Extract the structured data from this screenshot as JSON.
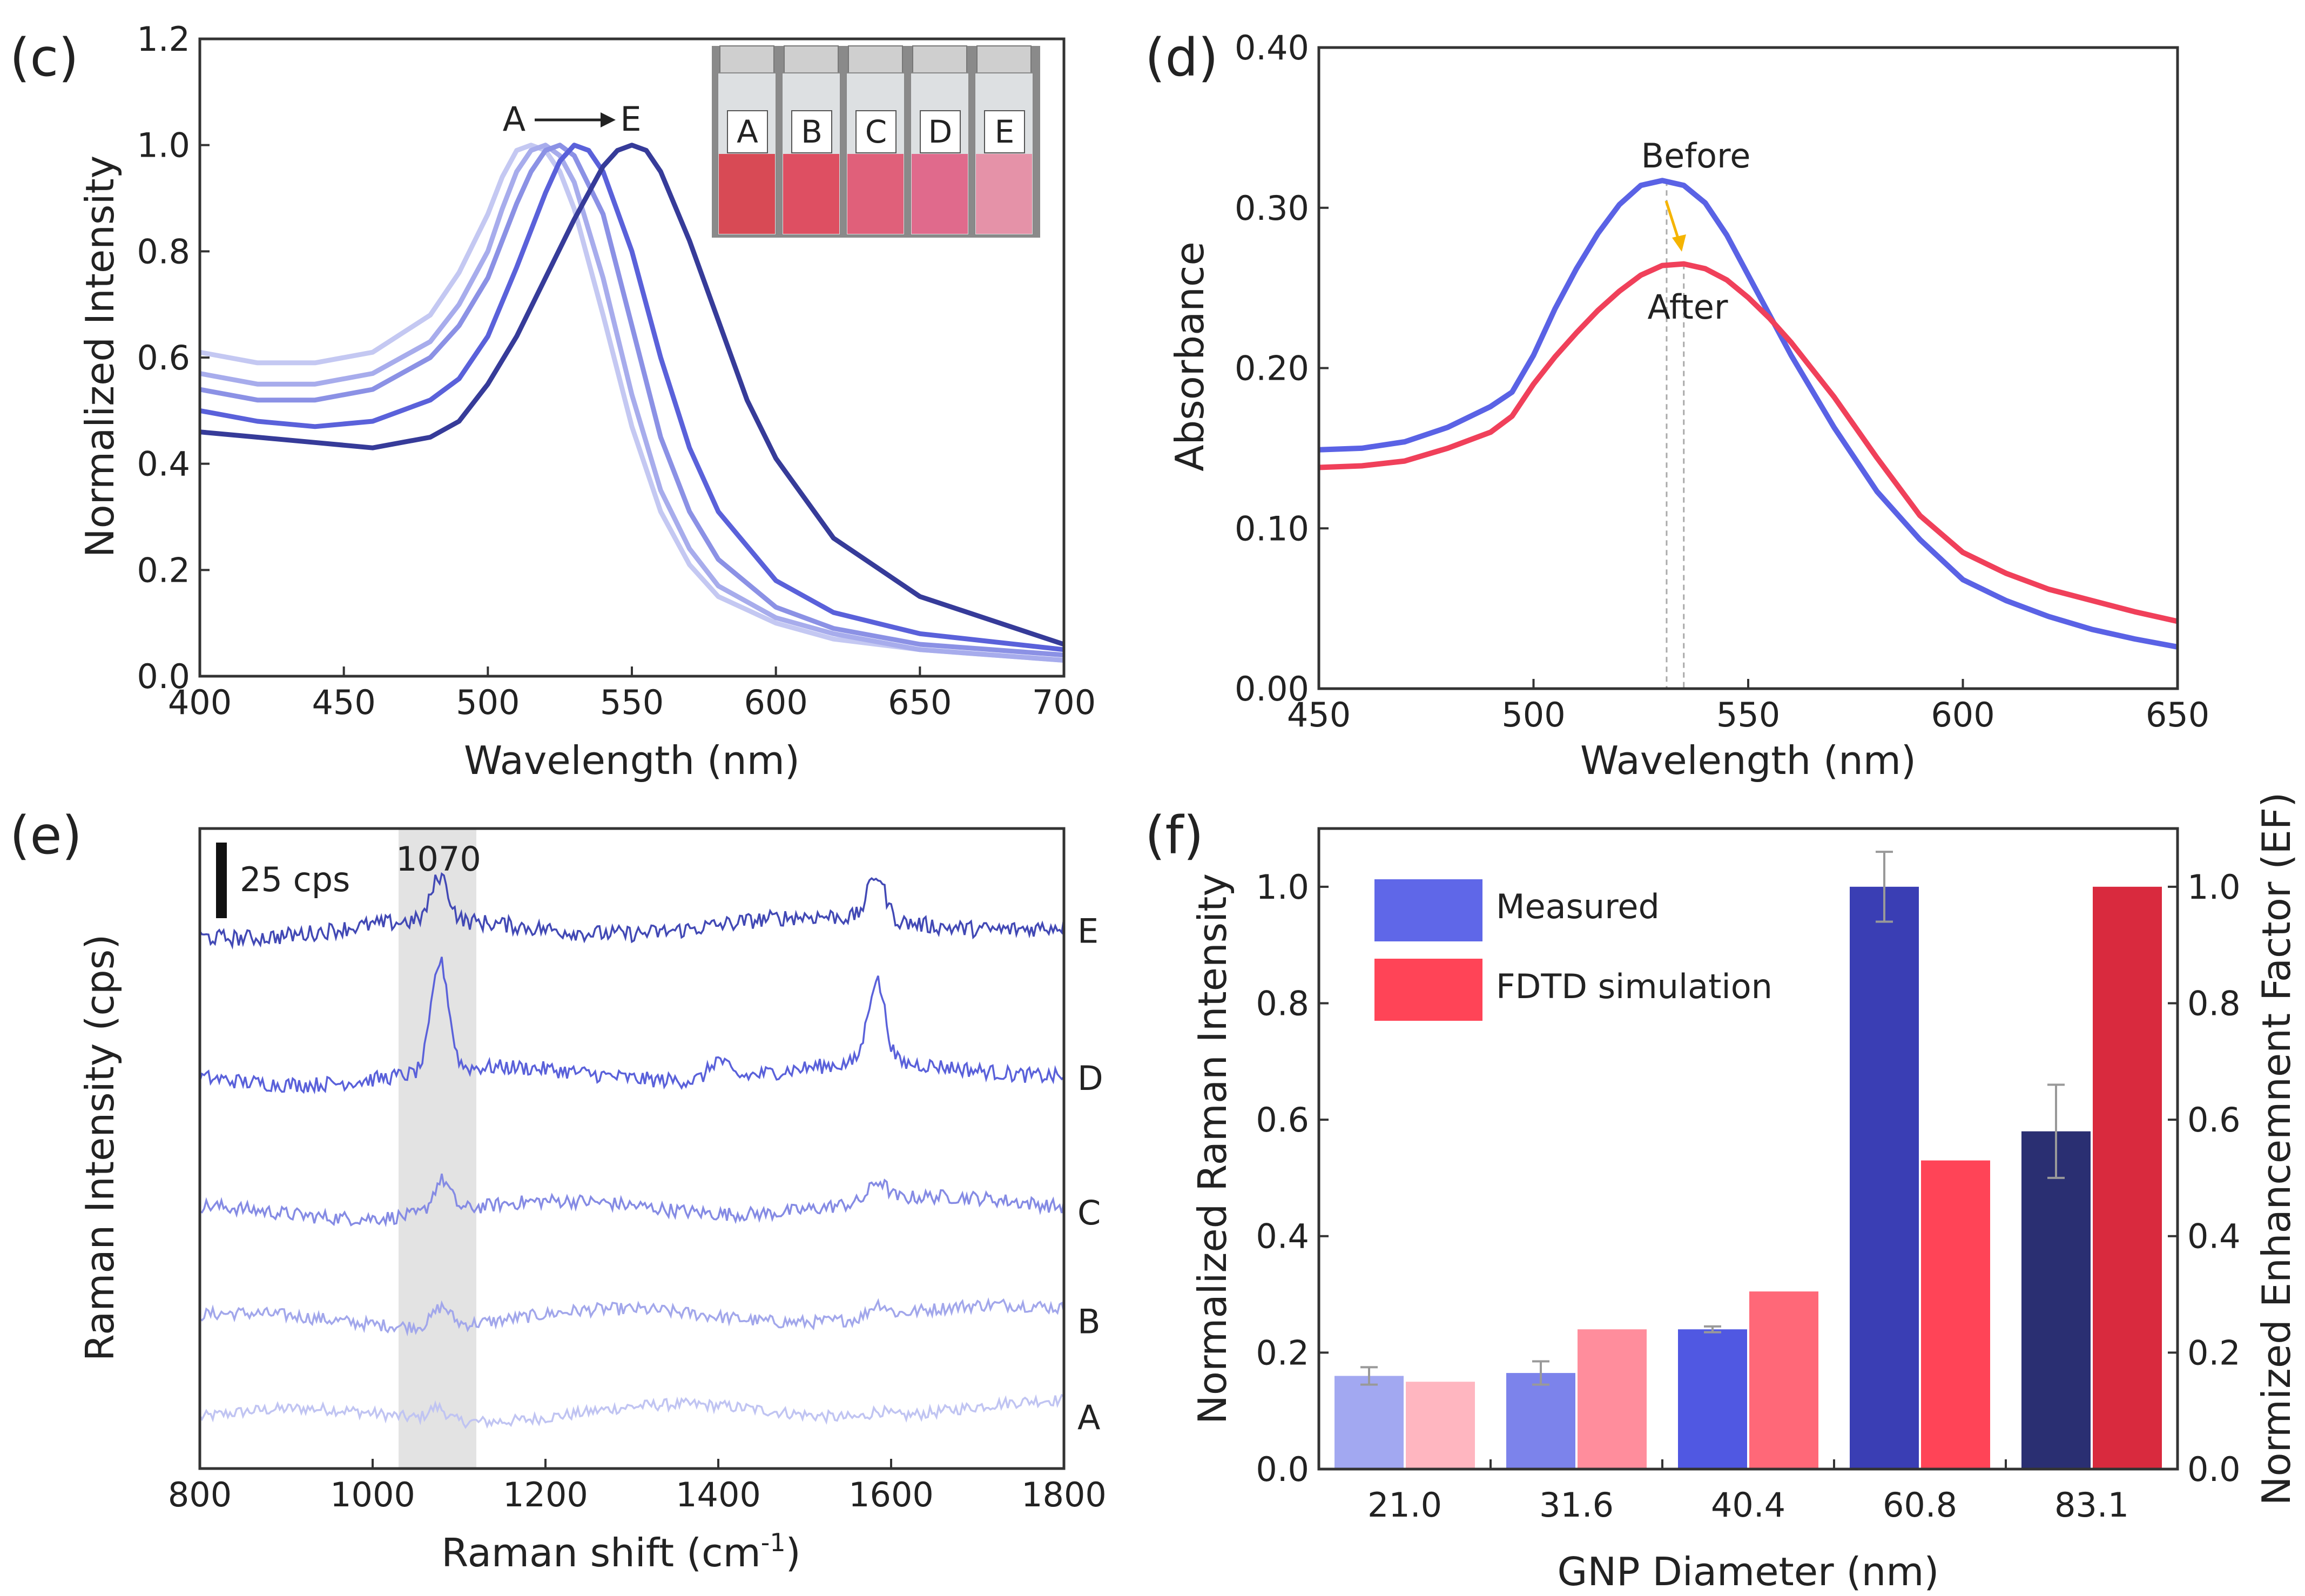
{
  "colors": {
    "series_c": [
      "#c4c8f2",
      "#a7acec",
      "#8b91e5",
      "#5a61da",
      "#363b99"
    ],
    "series_e": [
      "#c0c4f2",
      "#a2a7eb",
      "#858be4",
      "#5a61da",
      "#4249b5"
    ],
    "before": "#5a62e5",
    "after": "#f0405a",
    "arrow": "#f5b400",
    "measured_bars": [
      "#a2a8f1",
      "#7c83eb",
      "#5058e2",
      "#3a3eb4",
      "#2a2f72"
    ],
    "fdtd_bars": [
      "#ffb6c0",
      "#ff8d9c",
      "#ff6878",
      "#ff4457",
      "#d92a3e"
    ],
    "error_bar": "#999999",
    "shade": "#e0e0e0"
  },
  "chart_data": [
    {
      "panel": "(c)",
      "type": "line",
      "xlabel": "Wavelength (nm)",
      "ylabel": "Normalized Intensity",
      "xlim": [
        400,
        700
      ],
      "ylim": [
        0.0,
        1.2
      ],
      "xticks": [
        "400",
        "450",
        "500",
        "550",
        "600",
        "650",
        "700"
      ],
      "yticks": [
        "0.0",
        "0.2",
        "0.4",
        "0.6",
        "0.8",
        "1.0",
        "1.2"
      ],
      "annotation": {
        "start": "A",
        "end": "E"
      },
      "inset_labels": [
        "A",
        "B",
        "C",
        "D",
        "E"
      ],
      "series": [
        {
          "name": "A",
          "x": [
            400,
            420,
            440,
            460,
            480,
            490,
            500,
            505,
            510,
            515,
            520,
            525,
            530,
            540,
            550,
            560,
            570,
            580,
            600,
            620,
            650,
            700
          ],
          "y": [
            0.61,
            0.59,
            0.59,
            0.61,
            0.68,
            0.76,
            0.87,
            0.94,
            0.99,
            1.0,
            0.99,
            0.95,
            0.88,
            0.68,
            0.47,
            0.31,
            0.21,
            0.15,
            0.1,
            0.07,
            0.05,
            0.03
          ]
        },
        {
          "name": "B",
          "x": [
            400,
            420,
            440,
            460,
            480,
            490,
            500,
            505,
            510,
            515,
            520,
            525,
            530,
            540,
            550,
            560,
            570,
            580,
            600,
            620,
            650,
            700
          ],
          "y": [
            0.57,
            0.55,
            0.55,
            0.57,
            0.63,
            0.7,
            0.8,
            0.88,
            0.95,
            0.99,
            1.0,
            0.98,
            0.93,
            0.75,
            0.53,
            0.35,
            0.24,
            0.17,
            0.11,
            0.08,
            0.05,
            0.03
          ]
        },
        {
          "name": "C",
          "x": [
            400,
            420,
            440,
            460,
            480,
            490,
            500,
            510,
            515,
            520,
            525,
            530,
            540,
            550,
            560,
            570,
            580,
            600,
            620,
            650,
            700
          ],
          "y": [
            0.54,
            0.52,
            0.52,
            0.54,
            0.6,
            0.66,
            0.75,
            0.89,
            0.95,
            0.99,
            1.0,
            0.98,
            0.87,
            0.66,
            0.45,
            0.31,
            0.22,
            0.13,
            0.09,
            0.06,
            0.04
          ]
        },
        {
          "name": "D",
          "x": [
            400,
            420,
            440,
            460,
            480,
            490,
            500,
            510,
            520,
            525,
            530,
            535,
            540,
            550,
            560,
            570,
            580,
            600,
            620,
            650,
            700
          ],
          "y": [
            0.5,
            0.48,
            0.47,
            0.48,
            0.52,
            0.56,
            0.64,
            0.77,
            0.91,
            0.97,
            1.0,
            0.99,
            0.95,
            0.8,
            0.6,
            0.43,
            0.31,
            0.18,
            0.12,
            0.08,
            0.05
          ]
        },
        {
          "name": "E",
          "x": [
            400,
            420,
            440,
            460,
            480,
            490,
            500,
            510,
            520,
            530,
            540,
            545,
            550,
            555,
            560,
            570,
            580,
            590,
            600,
            620,
            650,
            700
          ],
          "y": [
            0.46,
            0.45,
            0.44,
            0.43,
            0.45,
            0.48,
            0.55,
            0.64,
            0.75,
            0.86,
            0.96,
            0.99,
            1.0,
            0.99,
            0.95,
            0.82,
            0.67,
            0.52,
            0.41,
            0.26,
            0.15,
            0.06
          ]
        }
      ]
    },
    {
      "panel": "(d)",
      "type": "line",
      "xlabel": "Wavelength (nm)",
      "ylabel": "Absorbance",
      "xlim": [
        450,
        650
      ],
      "ylim": [
        0.0,
        0.4
      ],
      "xticks": [
        "450",
        "500",
        "550",
        "600",
        "650"
      ],
      "yticks": [
        "0.00",
        "0.10",
        "0.20",
        "0.30",
        "0.40"
      ],
      "peak_markers": [
        531,
        535
      ],
      "series": [
        {
          "name": "Before",
          "x": [
            450,
            460,
            470,
            480,
            490,
            495,
            500,
            505,
            510,
            515,
            520,
            525,
            530,
            535,
            540,
            545,
            550,
            555,
            560,
            570,
            580,
            590,
            600,
            610,
            620,
            630,
            640,
            650
          ],
          "y": [
            0.149,
            0.15,
            0.154,
            0.163,
            0.176,
            0.185,
            0.208,
            0.237,
            0.262,
            0.284,
            0.302,
            0.314,
            0.317,
            0.314,
            0.303,
            0.283,
            0.258,
            0.233,
            0.208,
            0.163,
            0.123,
            0.093,
            0.068,
            0.055,
            0.045,
            0.037,
            0.031,
            0.026
          ]
        },
        {
          "name": "After",
          "x": [
            450,
            460,
            470,
            480,
            490,
            495,
            500,
            505,
            510,
            515,
            520,
            525,
            530,
            535,
            540,
            545,
            550,
            555,
            560,
            570,
            580,
            590,
            600,
            610,
            620,
            630,
            640,
            650
          ],
          "y": [
            0.138,
            0.139,
            0.142,
            0.15,
            0.16,
            0.17,
            0.19,
            0.207,
            0.222,
            0.236,
            0.248,
            0.258,
            0.264,
            0.265,
            0.262,
            0.255,
            0.244,
            0.231,
            0.216,
            0.182,
            0.144,
            0.108,
            0.085,
            0.072,
            0.062,
            0.055,
            0.048,
            0.042
          ]
        }
      ],
      "annotations": [
        "Before",
        "After"
      ]
    },
    {
      "panel": "(e)",
      "type": "line",
      "xlabel": "Raman shift (cm",
      "xlabel_sup": "-1",
      "xlabel_end": ")",
      "ylabel": "Raman Intensity (cps)",
      "xlim": [
        800,
        1800
      ],
      "xticks": [
        "800",
        "1000",
        "1200",
        "1400",
        "1600",
        "1800"
      ],
      "scale_bar": "25 cps",
      "highlight_label": "1070",
      "highlight_range": [
        1030,
        1120
      ],
      "series": [
        {
          "name": "A",
          "offset": 0.08,
          "peaks": [
            [
              1075,
              0.02
            ],
            [
              1585,
              0.01
            ]
          ]
        },
        {
          "name": "B",
          "offset": 0.23,
          "peaks": [
            [
              1080,
              0.03
            ],
            [
              1585,
              0.02
            ]
          ]
        },
        {
          "name": "C",
          "offset": 0.4,
          "peaks": [
            [
              1080,
              0.05
            ],
            [
              1585,
              0.03
            ]
          ]
        },
        {
          "name": "D",
          "offset": 0.61,
          "peaks": [
            [
              1078,
              0.17
            ],
            [
              1583,
              0.13
            ],
            [
              1400,
              0.03
            ]
          ]
        },
        {
          "name": "E",
          "offset": 0.84,
          "peaks": [
            [
              1078,
              0.07
            ],
            [
              1583,
              0.07
            ]
          ]
        }
      ]
    },
    {
      "panel": "(f)",
      "type": "bar",
      "xlabel": "GNP Diameter (nm)",
      "ylabel": "Normalized  Raman Intensity",
      "y2label": "Normized Enhancemnent Factor (EF)",
      "ylim": [
        0.0,
        1.1
      ],
      "yticks": [
        "0.0",
        "0.2",
        "0.4",
        "0.6",
        "0.8",
        "1.0"
      ],
      "categories": [
        "21.0",
        "31.6",
        "40.4",
        "60.8",
        "83.1"
      ],
      "series": [
        {
          "name": "Measured",
          "values": [
            0.16,
            0.165,
            0.24,
            1.0,
            0.58
          ],
          "errors": [
            0.015,
            0.02,
            0.005,
            0.06,
            0.08
          ]
        },
        {
          "name": "FDTD simulation",
          "values": [
            0.15,
            0.24,
            0.305,
            0.53,
            1.0
          ]
        }
      ]
    }
  ]
}
